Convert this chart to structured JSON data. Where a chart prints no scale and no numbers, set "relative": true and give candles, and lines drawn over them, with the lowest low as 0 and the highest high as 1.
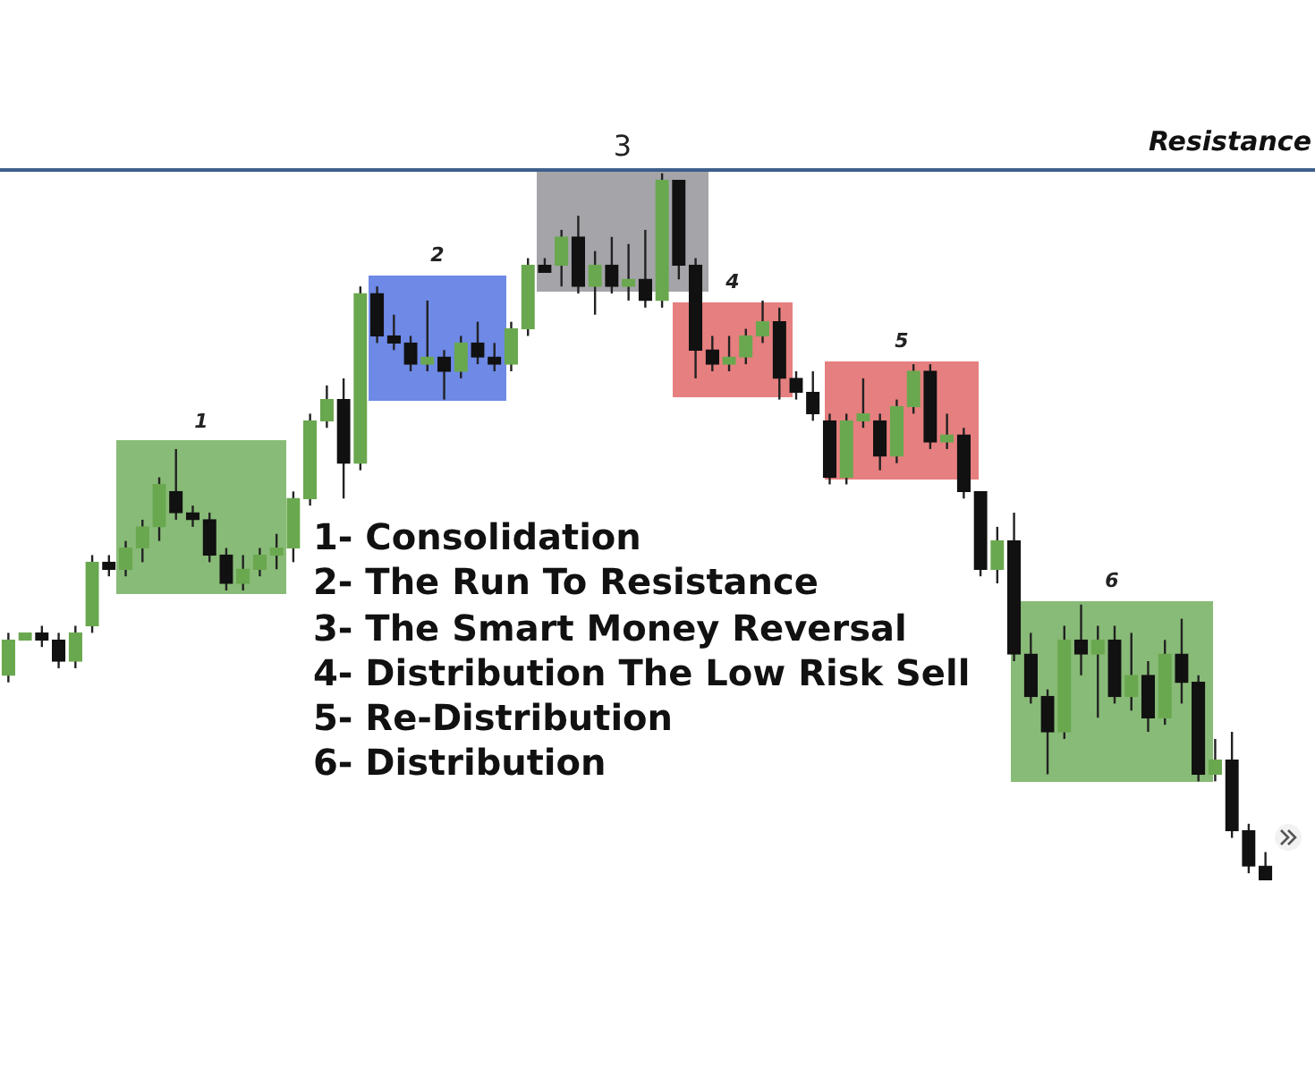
{
  "chart_data": {
    "type": "candlestick",
    "relative": true,
    "tick_labels": false,
    "categories": [
      null,
      null,
      null,
      null,
      null,
      null,
      null,
      null,
      null,
      null,
      null,
      null,
      null,
      null,
      null,
      null,
      null,
      null,
      null,
      null,
      null,
      null,
      null,
      null,
      null,
      null,
      null,
      null,
      null,
      null,
      null,
      null,
      null,
      null,
      null,
      null,
      null,
      null,
      null,
      null,
      null,
      null,
      null,
      null,
      null,
      null,
      null,
      null,
      null,
      null,
      null,
      null,
      null,
      null,
      null,
      null,
      null,
      null,
      null,
      null,
      null,
      null,
      null,
      null,
      null,
      null,
      null,
      null,
      null,
      null,
      null,
      null,
      null,
      null,
      null,
      null
    ],
    "ohlc": [
      [
        0.29,
        0.35,
        0.28,
        0.34
      ],
      [
        0.34,
        0.35,
        0.34,
        0.35
      ],
      [
        0.35,
        0.36,
        0.33,
        0.34
      ],
      [
        0.34,
        0.35,
        0.3,
        0.31
      ],
      [
        0.31,
        0.36,
        0.3,
        0.35
      ],
      [
        0.36,
        0.46,
        0.35,
        0.45
      ],
      [
        0.45,
        0.46,
        0.43,
        0.44
      ],
      [
        0.44,
        0.48,
        0.43,
        0.47
      ],
      [
        0.47,
        0.51,
        0.45,
        0.5
      ],
      [
        0.5,
        0.57,
        0.48,
        0.56
      ],
      [
        0.55,
        0.61,
        0.51,
        0.52
      ],
      [
        0.52,
        0.53,
        0.5,
        0.51
      ],
      [
        0.51,
        0.52,
        0.45,
        0.46
      ],
      [
        0.46,
        0.47,
        0.41,
        0.42
      ],
      [
        0.42,
        0.46,
        0.41,
        0.44
      ],
      [
        0.44,
        0.47,
        0.43,
        0.46
      ],
      [
        0.46,
        0.49,
        0.44,
        0.47
      ],
      [
        0.47,
        0.55,
        0.45,
        0.54
      ],
      [
        0.54,
        0.66,
        0.53,
        0.65
      ],
      [
        0.65,
        0.7,
        0.64,
        0.68
      ],
      [
        0.68,
        0.71,
        0.54,
        0.59
      ],
      [
        0.59,
        0.84,
        0.58,
        0.83
      ],
      [
        0.83,
        0.84,
        0.76,
        0.77
      ],
      [
        0.77,
        0.8,
        0.75,
        0.76
      ],
      [
        0.76,
        0.77,
        0.72,
        0.73
      ],
      [
        0.73,
        0.82,
        0.72,
        0.74
      ],
      [
        0.74,
        0.75,
        0.68,
        0.72
      ],
      [
        0.72,
        0.77,
        0.71,
        0.76
      ],
      [
        0.76,
        0.79,
        0.73,
        0.74
      ],
      [
        0.74,
        0.76,
        0.72,
        0.73
      ],
      [
        0.73,
        0.79,
        0.72,
        0.78
      ],
      [
        0.78,
        0.88,
        0.77,
        0.87
      ],
      [
        0.87,
        0.88,
        0.86,
        0.86
      ],
      [
        0.87,
        0.92,
        0.84,
        0.91
      ],
      [
        0.91,
        0.94,
        0.83,
        0.84
      ],
      [
        0.84,
        0.89,
        0.8,
        0.87
      ],
      [
        0.87,
        0.91,
        0.83,
        0.84
      ],
      [
        0.84,
        0.9,
        0.82,
        0.85
      ],
      [
        0.85,
        0.92,
        0.81,
        0.82
      ],
      [
        0.82,
        1,
        0.81,
        0.99
      ],
      [
        0.99,
        0.99,
        0.85,
        0.87
      ],
      [
        0.87,
        0.88,
        0.71,
        0.75
      ],
      [
        0.75,
        0.77,
        0.72,
        0.73
      ],
      [
        0.73,
        0.77,
        0.72,
        0.74
      ],
      [
        0.74,
        0.78,
        0.73,
        0.77
      ],
      [
        0.77,
        0.82,
        0.76,
        0.79
      ],
      [
        0.79,
        0.81,
        0.68,
        0.71
      ],
      [
        0.71,
        0.72,
        0.68,
        0.69
      ],
      [
        0.69,
        0.72,
        0.65,
        0.66
      ],
      [
        0.65,
        0.66,
        0.56,
        0.57
      ],
      [
        0.57,
        0.66,
        0.56,
        0.65
      ],
      [
        0.65,
        0.71,
        0.64,
        0.66
      ],
      [
        0.65,
        0.66,
        0.58,
        0.6
      ],
      [
        0.6,
        0.68,
        0.59,
        0.67
      ],
      [
        0.67,
        0.73,
        0.66,
        0.72
      ],
      [
        0.72,
        0.73,
        0.61,
        0.62
      ],
      [
        0.62,
        0.66,
        0.61,
        0.63
      ],
      [
        0.63,
        0.64,
        0.54,
        0.55
      ],
      [
        0.55,
        0.55,
        0.43,
        0.44
      ],
      [
        0.44,
        0.5,
        0.42,
        0.48
      ],
      [
        0.48,
        0.52,
        0.31,
        0.32
      ],
      [
        0.32,
        0.35,
        0.25,
        0.26
      ],
      [
        0.26,
        0.27,
        0.15,
        0.21
      ],
      [
        0.21,
        0.36,
        0.2,
        0.34
      ],
      [
        0.34,
        0.39,
        0.29,
        0.32
      ],
      [
        0.32,
        0.36,
        0.23,
        0.34
      ],
      [
        0.34,
        0.36,
        0.25,
        0.26
      ],
      [
        0.26,
        0.35,
        0.24,
        0.29
      ],
      [
        0.29,
        0.31,
        0.21,
        0.23
      ],
      [
        0.23,
        0.34,
        0.22,
        0.32
      ],
      [
        0.32,
        0.37,
        0.25,
        0.28
      ],
      [
        0.28,
        0.29,
        0.14,
        0.15
      ],
      [
        0.15,
        0.2,
        0.14,
        0.17
      ],
      [
        0.17,
        0.21,
        0.06,
        0.07
      ],
      [
        0.07,
        0.08,
        0.01,
        0.02
      ],
      [
        0.02,
        0.04,
        0,
        0
      ]
    ],
    "colors": [
      "#6aa84f",
      "#6aa84f",
      "#111111",
      "#111111",
      "#6aa84f",
      "#6aa84f",
      "#111111",
      "#6aa84f",
      "#6aa84f",
      "#6aa84f",
      "#111111",
      "#111111",
      "#111111",
      "#111111",
      "#6aa84f",
      "#6aa84f",
      "#6aa84f",
      "#6aa84f",
      "#6aa84f",
      "#6aa84f",
      "#111111",
      "#6aa84f",
      "#111111",
      "#111111",
      "#111111",
      "#6aa84f",
      "#111111",
      "#6aa84f",
      "#111111",
      "#111111",
      "#6aa84f",
      "#6aa84f",
      "#111111",
      "#6aa84f",
      "#111111",
      "#6aa84f",
      "#111111",
      "#6aa84f",
      "#111111",
      "#6aa84f",
      "#111111",
      "#111111",
      "#111111",
      "#6aa84f",
      "#6aa84f",
      "#6aa84f",
      "#111111",
      "#111111",
      "#111111",
      "#111111",
      "#6aa84f",
      "#6aa84f",
      "#111111",
      "#6aa84f",
      "#6aa84f",
      "#111111",
      "#6aa84f",
      "#111111",
      "#111111",
      "#6aa84f",
      "#111111",
      "#111111",
      "#111111",
      "#6aa84f",
      "#111111",
      "#6aa84f",
      "#111111",
      "#6aa84f",
      "#111111",
      "#6aa84f",
      "#111111",
      "#111111",
      "#6aa84f",
      "#111111",
      "#111111",
      "#111111"
    ],
    "annotations": [
      "1",
      "2",
      "3",
      "4",
      "5",
      "6",
      "Resistance",
      "1- Consolidation",
      "2- The Run To Resistance",
      "3- The Smart Money Reversal",
      "4- Distribution The Low Risk Sell",
      "5- Re-Distribution",
      "6- Distribution"
    ]
  }
}
